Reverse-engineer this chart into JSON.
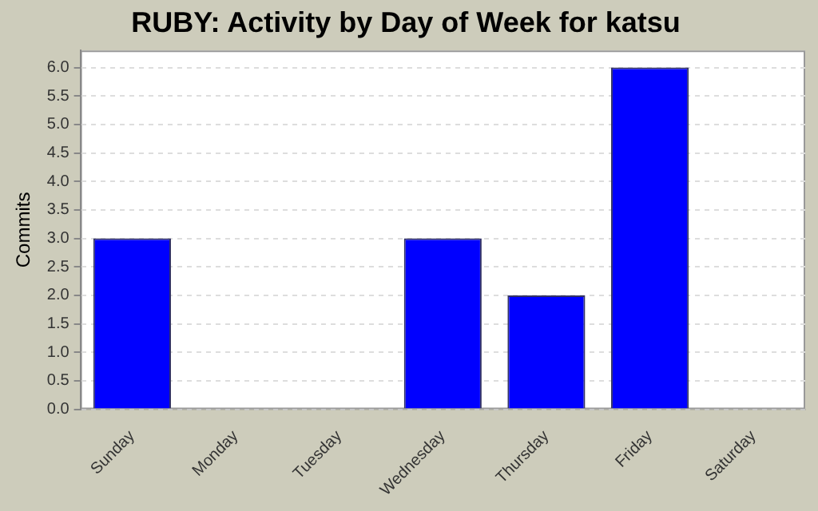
{
  "chart_data": {
    "type": "bar",
    "title": "RUBY: Activity by Day of Week for katsu",
    "ylabel": "Commits",
    "categories": [
      "Sunday",
      "Monday",
      "Tuesday",
      "Wednesday",
      "Thursday",
      "Friday",
      "Saturday"
    ],
    "values": [
      3,
      0,
      0,
      3,
      2,
      6,
      0
    ],
    "color": "#0000ff",
    "ylim": [
      0,
      6.3
    ],
    "yticks": [
      {
        "value": 0,
        "label": "0.0"
      },
      {
        "value": 0.5,
        "label": "0.5"
      },
      {
        "value": 1,
        "label": "1.0"
      },
      {
        "value": 1.5,
        "label": "1.5"
      },
      {
        "value": 2,
        "label": "2.0"
      },
      {
        "value": 2.5,
        "label": "2.5"
      },
      {
        "value": 3,
        "label": "3.0"
      },
      {
        "value": 3.5,
        "label": "3.5"
      },
      {
        "value": 4,
        "label": "4.0"
      },
      {
        "value": 4.5,
        "label": "4.5"
      },
      {
        "value": 5,
        "label": "5.0"
      },
      {
        "value": 5.5,
        "label": "5.5"
      },
      {
        "value": 6,
        "label": "6.0"
      }
    ],
    "grid": "y",
    "legend": false
  }
}
